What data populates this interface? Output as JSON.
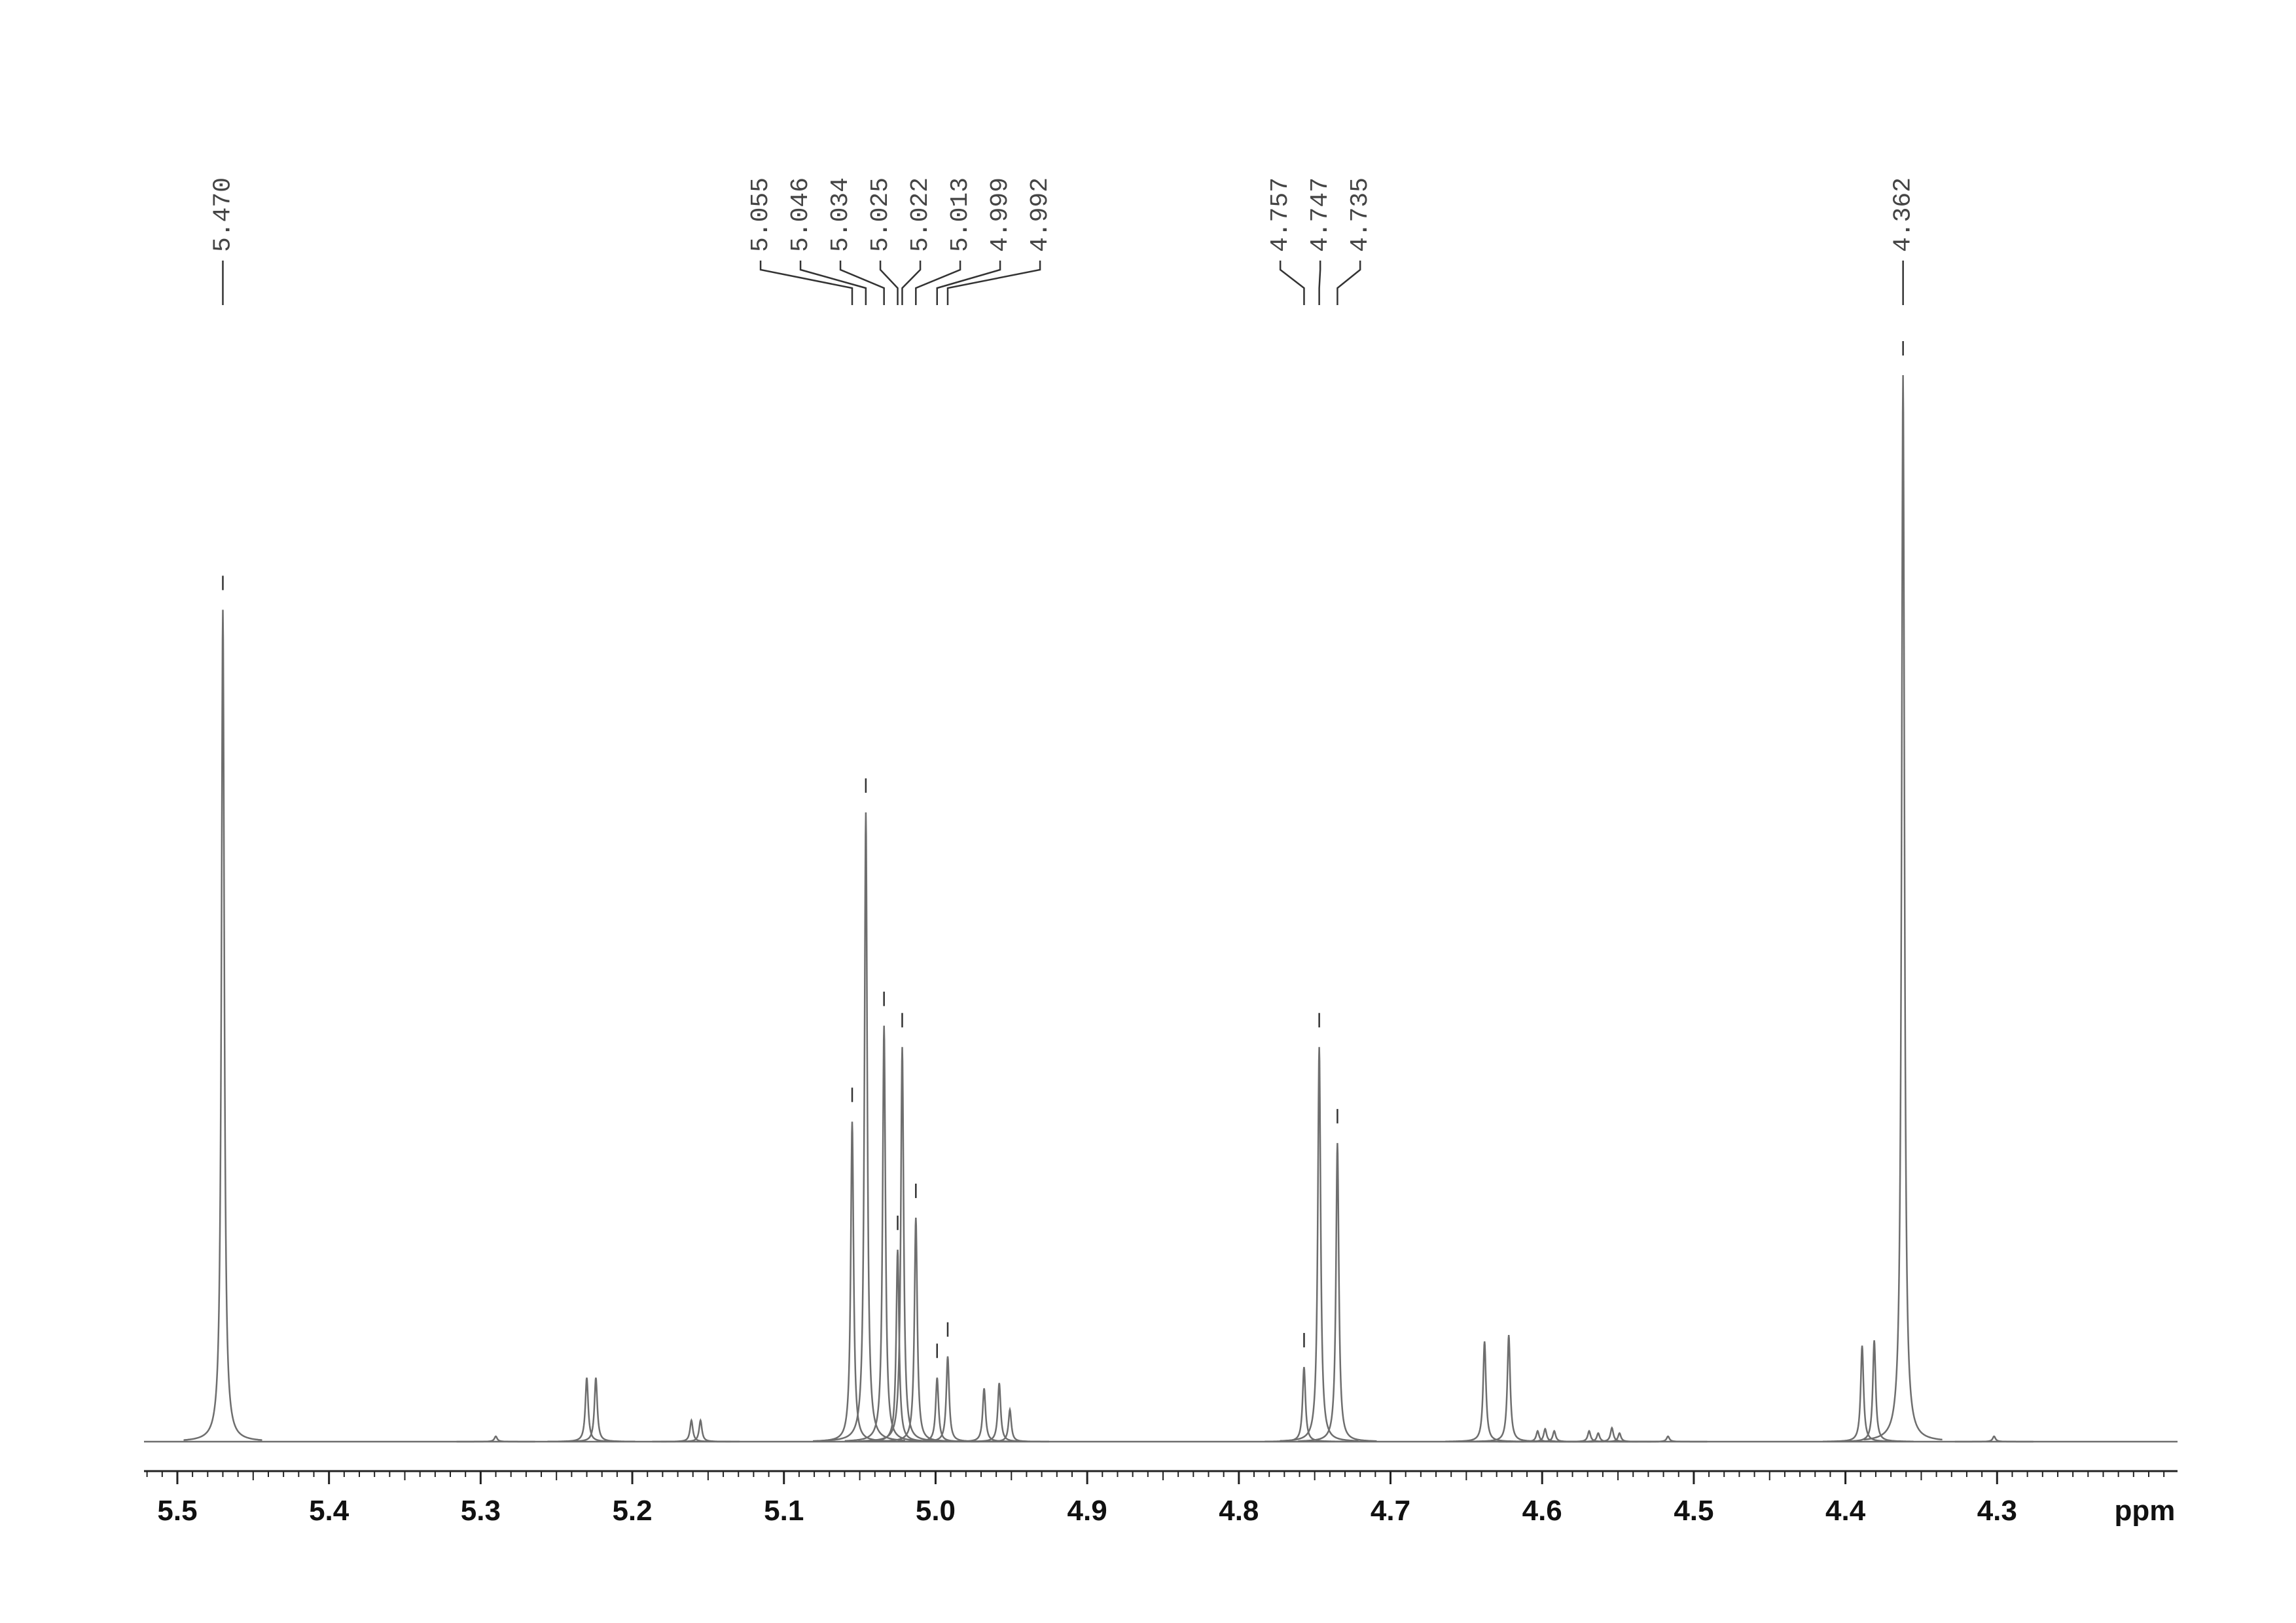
{
  "chart_data": {
    "type": "nmr",
    "xlabel": "ppm",
    "xlim": [
      5.522,
      4.181
    ],
    "xticks": [
      5.5,
      5.4,
      5.3,
      5.2,
      5.1,
      {
        "value": 5,
        "label": "5.0"
      },
      4.9,
      4.8,
      4.7,
      4.6,
      4.5,
      4.4,
      4.3
    ],
    "ylim": [
      0,
      100
    ],
    "color": "#6e6e6e",
    "peak_labels": [
      {
        "value": 5.47,
        "label": "5.470"
      },
      5.055,
      5.046,
      5.034,
      5.025,
      5.022,
      5.013,
      4.999,
      4.992,
      4.757,
      4.747,
      4.735,
      4.362
    ],
    "peaks": {
      "x": [
        5.47,
        5.29,
        5.23,
        5.224,
        5.161,
        5.155,
        5.055,
        5.046,
        5.034,
        5.025,
        5.022,
        5.013,
        4.999,
        4.992,
        4.968,
        4.958,
        4.951,
        4.757,
        4.747,
        4.735,
        4.638,
        4.622,
        4.603,
        4.598,
        4.592,
        4.569,
        4.563,
        4.554,
        4.549,
        4.517,
        4.389,
        4.381,
        4.362,
        4.302
      ],
      "values": [
        78,
        0.5,
        6,
        6,
        2,
        2,
        30,
        59,
        39,
        18,
        37,
        21,
        6,
        8,
        5,
        5.5,
        3,
        7,
        37,
        28,
        9.4,
        10,
        1,
        1.2,
        1,
        1,
        0.8,
        1.3,
        0.8,
        0.5,
        9,
        9.5,
        100,
        0.5
      ]
    }
  }
}
